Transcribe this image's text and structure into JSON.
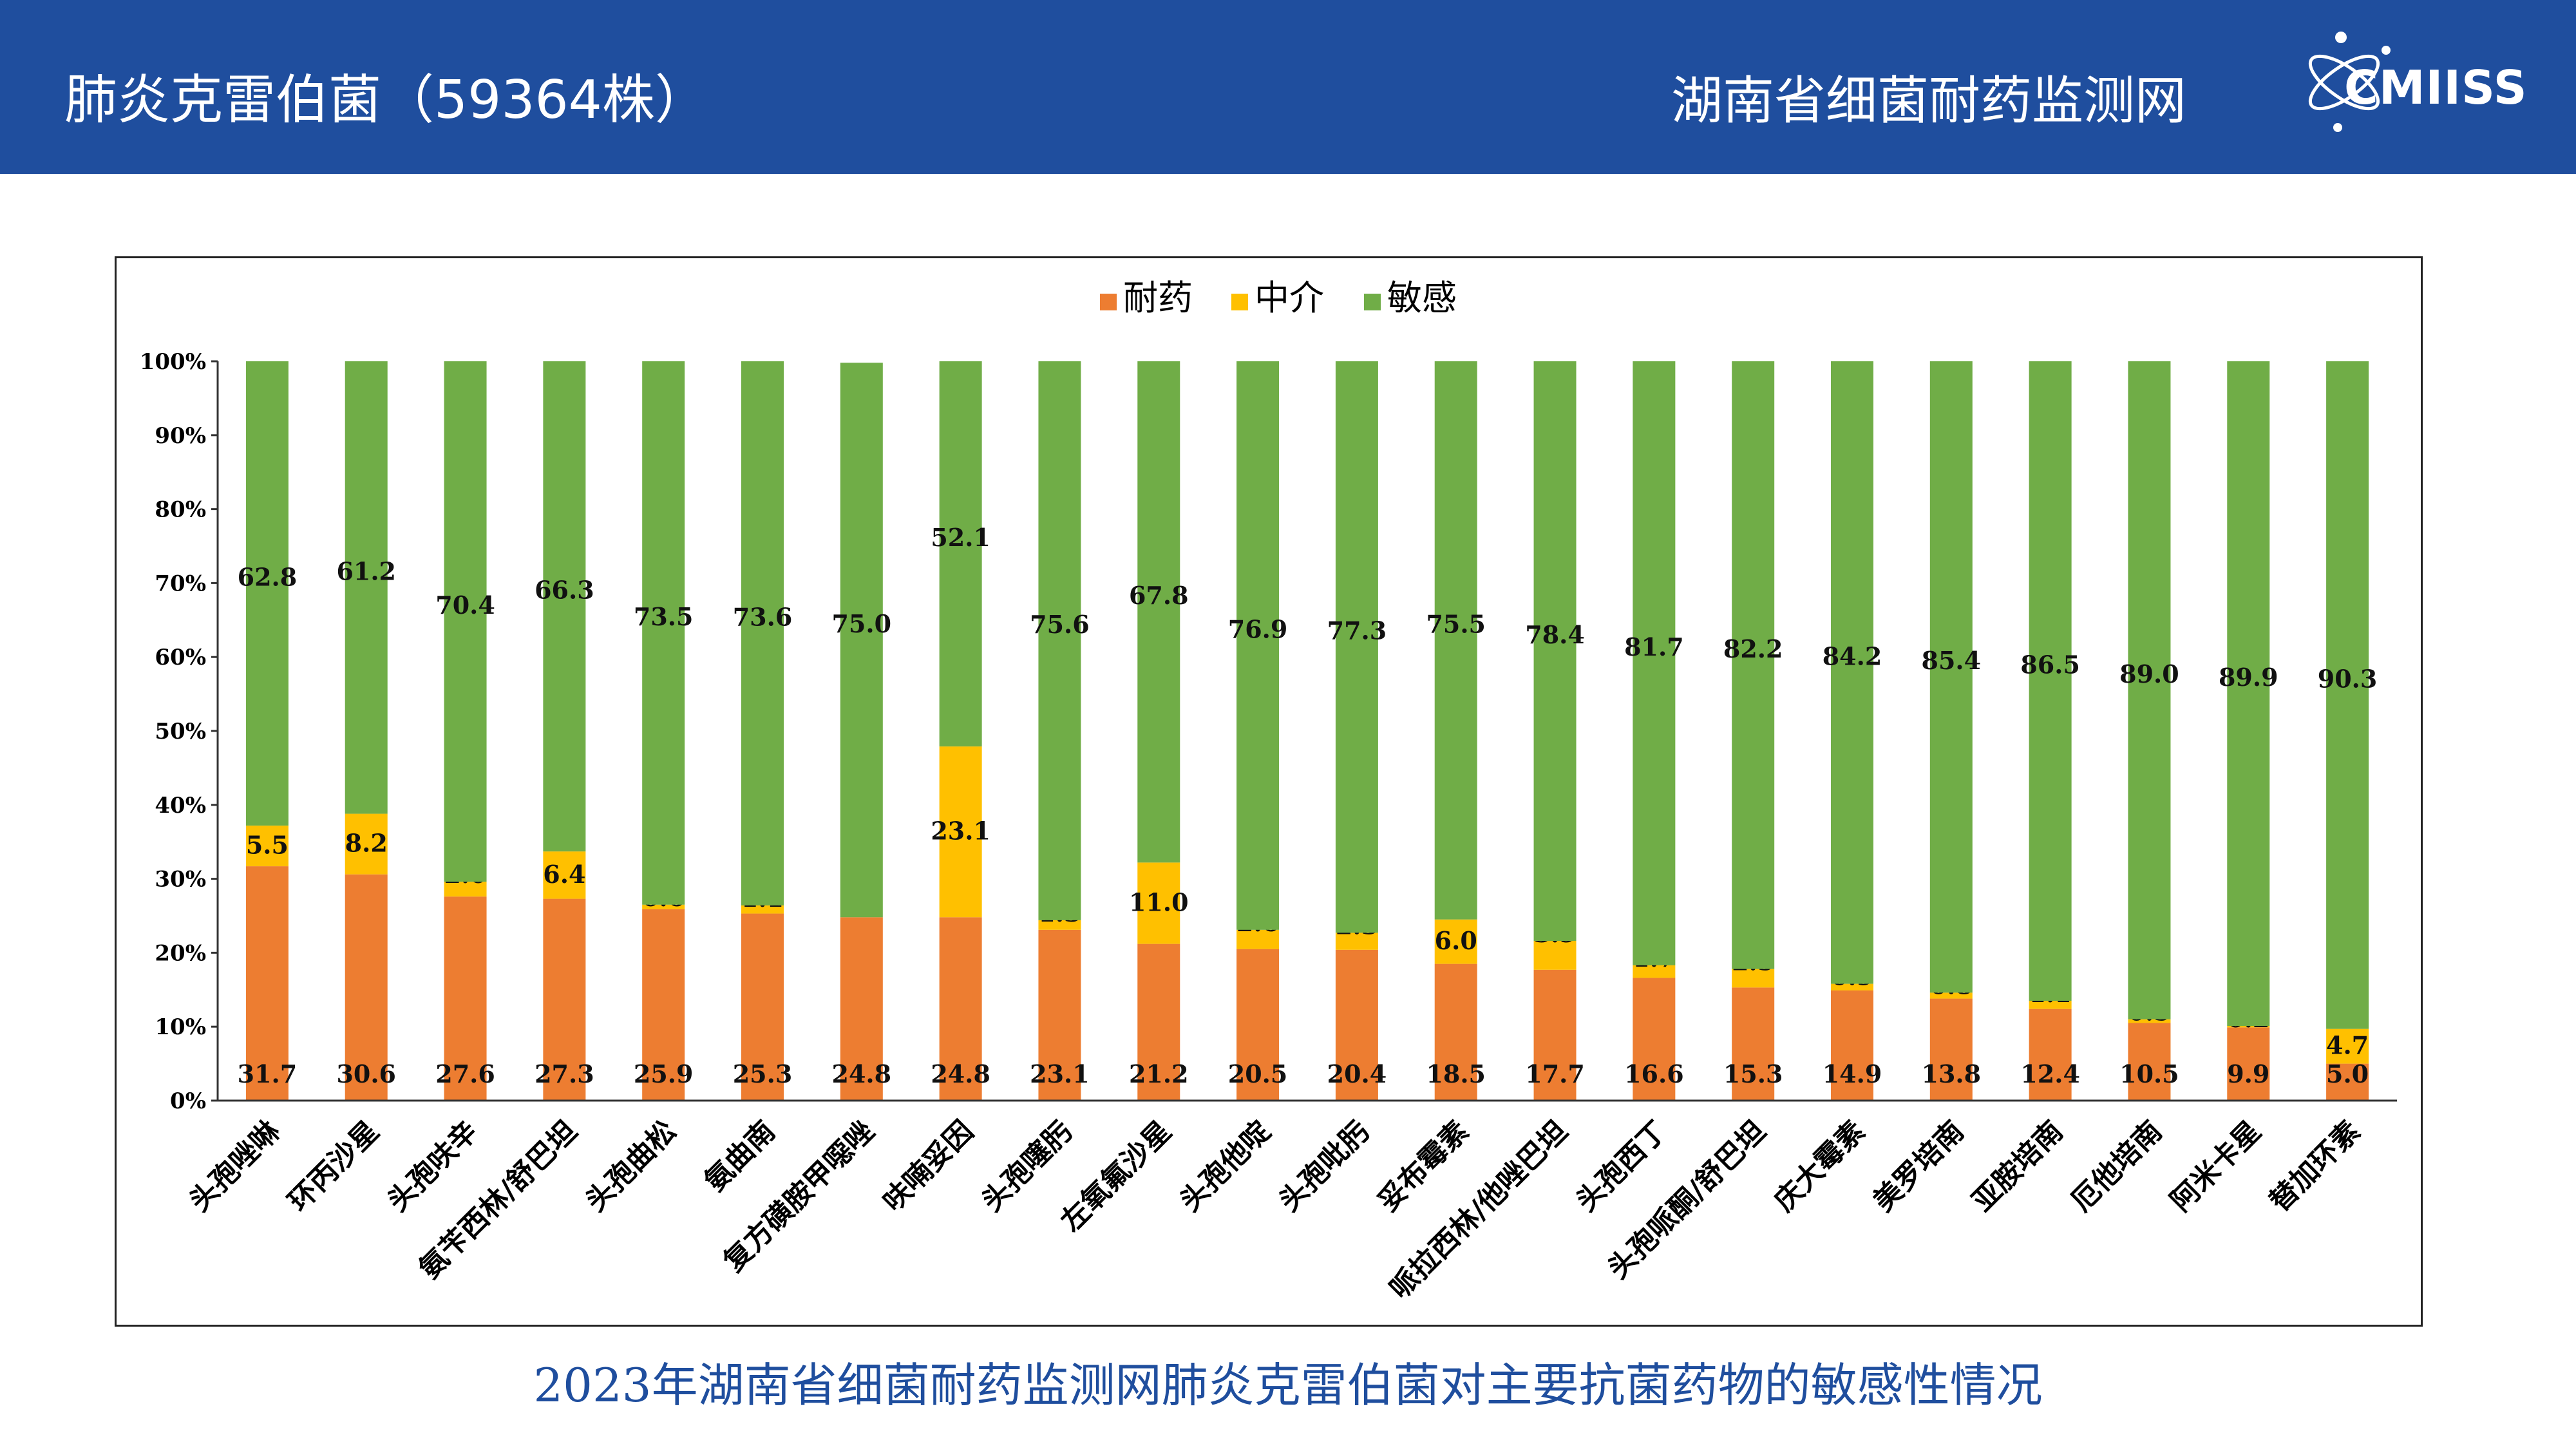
{
  "header": {
    "title": "肺炎克雷伯菌（59364株）",
    "org": "湖南省细菌耐药监测网",
    "logo_text": "CMIISS",
    "logo_icon": "cmiiss-atom-logo"
  },
  "caption": "2023年湖南省细菌耐药监测网肺炎克雷伯菌对主要抗菌药物的敏感性情况",
  "chart_data": {
    "type": "bar",
    "stacked": "percent",
    "title": "",
    "xlabel": "",
    "ylabel": "",
    "ylim": [
      0,
      100
    ],
    "yticks": [
      "0%",
      "10%",
      "20%",
      "30%",
      "40%",
      "50%",
      "60%",
      "70%",
      "80%",
      "90%",
      "100%"
    ],
    "legend_position": "top-center",
    "grid": false,
    "categories": [
      "头孢唑啉",
      "环丙沙星",
      "头孢呋辛",
      "氨苄西林/舒巴坦",
      "头孢曲松",
      "氨曲南",
      "复方磺胺甲噁唑",
      "呋喃妥因",
      "头孢噻肟",
      "左氧氟沙星",
      "头孢他啶",
      "头孢吡肟",
      "妥布霉素",
      "哌拉西林/他唑巴坦",
      "头孢西丁",
      "头孢哌酮/舒巴坦",
      "庆大霉素",
      "美罗培南",
      "亚胺培南",
      "厄他培南",
      "阿米卡星",
      "替加环素"
    ],
    "series": [
      {
        "name": "耐药",
        "color": "#ed7d31",
        "values": [
          31.7,
          30.6,
          27.6,
          27.3,
          25.9,
          25.3,
          24.8,
          24.8,
          23.1,
          21.2,
          20.5,
          20.4,
          18.5,
          17.7,
          16.6,
          15.3,
          14.9,
          13.8,
          12.4,
          10.5,
          9.9,
          5.0
        ],
        "labels": [
          "31.7",
          "30.6",
          "27.6",
          "27.3",
          "25.9",
          "25.3",
          "24.8",
          "24.8",
          "23.1",
          "21.2",
          "20.5",
          "20.4",
          "18.5",
          "17.7",
          "16.6",
          "15.3",
          "14.9",
          "13.8",
          "12.4",
          "10.5",
          "9.9",
          "5.0"
        ]
      },
      {
        "name": "中介",
        "color": "#ffc000",
        "values": [
          5.5,
          8.2,
          2.0,
          6.4,
          0.6,
          1.1,
          0,
          23.1,
          1.3,
          11.0,
          2.6,
          2.3,
          6.0,
          3.9,
          1.7,
          2.5,
          0.9,
          0.8,
          1.1,
          0.5,
          0.2,
          4.7
        ],
        "labels": [
          "5.5",
          "8.2",
          "2.0",
          "6.4",
          "0.6",
          "1.1",
          "",
          "23.1",
          "1.3",
          "11.0",
          "2.6",
          "2.3",
          "6.0",
          "3.9",
          "1.7",
          "2.5",
          "0.9",
          "0.8",
          "1.1",
          "0.5",
          "0.2",
          "4.7"
        ]
      },
      {
        "name": "敏感",
        "color": "#70ad47",
        "values": [
          62.8,
          61.2,
          70.4,
          66.3,
          73.5,
          73.6,
          75.0,
          52.1,
          75.6,
          67.8,
          76.9,
          77.3,
          75.5,
          78.4,
          81.7,
          82.2,
          84.2,
          85.4,
          86.5,
          89.0,
          89.9,
          90.3
        ],
        "labels": [
          "62.8",
          "61.2",
          "70.4",
          "66.3",
          "73.5",
          "73.6",
          "75.0",
          "52.1",
          "75.6",
          "67.8",
          "76.9",
          "77.3",
          "75.5",
          "78.4",
          "81.7",
          "82.2",
          "84.2",
          "85.4",
          "86.5",
          "89.0",
          "89.9",
          "90.3"
        ]
      }
    ]
  }
}
